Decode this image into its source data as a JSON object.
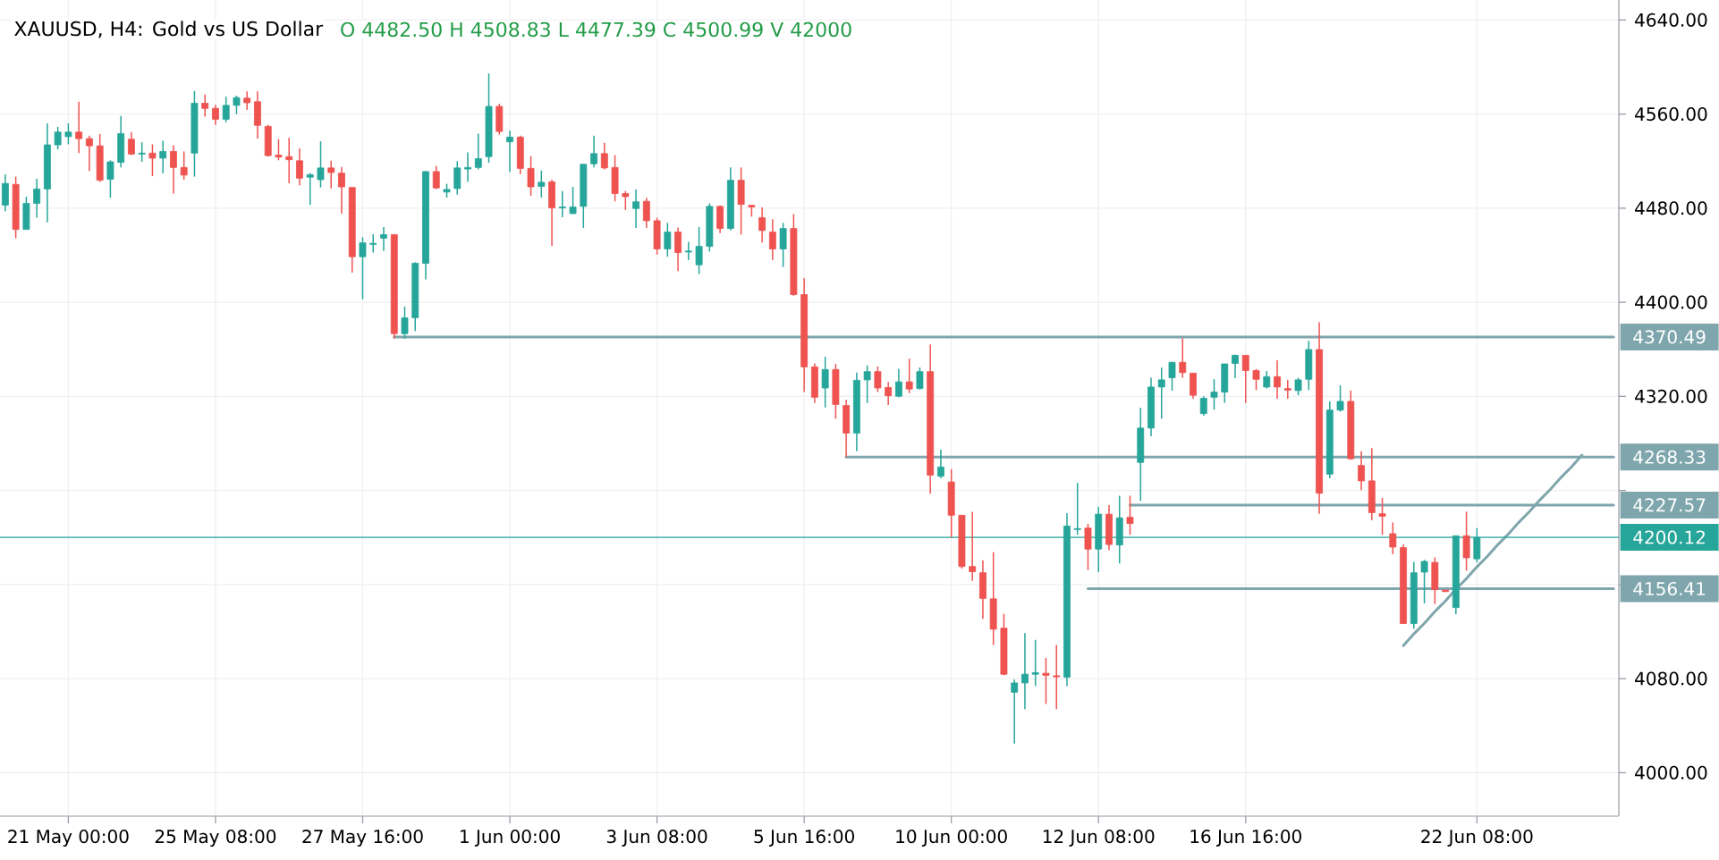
{
  "chart_data": {
    "type": "candlestick",
    "title": "XAUUSD, H4: Gold vs US Dollar",
    "subtitle": "O 4482.50 H 4508.83 L 4477.39 C 4500.99 V 42000",
    "categories": [
      null,
      null,
      null,
      null,
      null,
      null,
      "21 May 00:00",
      null,
      null,
      null,
      null,
      null,
      null,
      null,
      null,
      null,
      null,
      null,
      null,
      null,
      "25 May 08:00",
      null,
      null,
      null,
      null,
      null,
      null,
      null,
      null,
      null,
      null,
      null,
      null,
      null,
      "27 May 16:00",
      null,
      null,
      null,
      null,
      null,
      null,
      null,
      null,
      null,
      null,
      null,
      null,
      null,
      "1 Jun 00:00",
      null,
      null,
      null,
      null,
      null,
      null,
      null,
      null,
      null,
      null,
      null,
      null,
      null,
      "3 Jun 08:00",
      null,
      null,
      null,
      null,
      null,
      null,
      null,
      null,
      null,
      null,
      null,
      null,
      null,
      "5 Jun 16:00",
      null,
      null,
      null,
      null,
      null,
      null,
      null,
      null,
      null,
      null,
      null,
      null,
      null,
      "10 Jun 00:00",
      null,
      null,
      null,
      null,
      null,
      null,
      null,
      null,
      null,
      null,
      null,
      null,
      null,
      "12 Jun 08:00",
      null,
      null,
      null,
      null,
      null,
      null,
      null,
      null,
      null,
      null,
      null,
      null,
      null,
      "16 Jun 16:00",
      null,
      null,
      null,
      null,
      null,
      null,
      null,
      null,
      null,
      null,
      null,
      null,
      null,
      null,
      null,
      null,
      null,
      null,
      null,
      null,
      null,
      "22 Jun 08:00",
      null,
      null,
      null,
      null,
      null,
      null,
      null,
      null,
      null,
      null,
      null,
      null,
      null
    ],
    "ohlc": [
      [
        4482.5,
        4508.83,
        4477.39,
        4500.99
      ],
      [
        4500.2,
        4506.8,
        4454.4,
        4461.9
      ],
      [
        4461.9,
        4489.8,
        4461.9,
        4484.1
      ],
      [
        4484.1,
        4505.0,
        4471.9,
        4496.3
      ],
      [
        4496.3,
        4552.1,
        4468.0,
        4533.8
      ],
      [
        4533.8,
        4549.1,
        4529.9,
        4544.7
      ],
      [
        4540.8,
        4552.1,
        4534.3,
        4544.7
      ],
      [
        4544.7,
        4570.5,
        4526.8,
        4539.1
      ],
      [
        4539.1,
        4541.7,
        4511.6,
        4533.0
      ],
      [
        4533.0,
        4543.0,
        4502.4,
        4503.7
      ],
      [
        4504.6,
        4520.7,
        4488.9,
        4519.4
      ],
      [
        4519.0,
        4558.3,
        4514.6,
        4543.4
      ],
      [
        4538.6,
        4544.7,
        4525.1,
        4526.0
      ],
      [
        4526.0,
        4536.0,
        4519.4,
        4526.8
      ],
      [
        4526.8,
        4534.3,
        4507.2,
        4522.5
      ],
      [
        4522.5,
        4537.3,
        4509.8,
        4528.2
      ],
      [
        4528.2,
        4533.4,
        4492.4,
        4514.6
      ],
      [
        4514.6,
        4528.2,
        4504.2,
        4508.1
      ],
      [
        4526.8,
        4579.6,
        4506.8,
        4569.2
      ],
      [
        4569.2,
        4576.6,
        4557.8,
        4564.8
      ],
      [
        4564.8,
        4567.9,
        4550.8,
        4555.6
      ],
      [
        4555.6,
        4574.8,
        4553.0,
        4567.4
      ],
      [
        4567.4,
        4575.7,
        4560.0,
        4574.0
      ],
      [
        4573.5,
        4579.2,
        4563.5,
        4569.6
      ],
      [
        4570.5,
        4579.2,
        4539.1,
        4550.4
      ],
      [
        4549.5,
        4550.8,
        4523.8,
        4524.7
      ],
      [
        4525.1,
        4538.6,
        4520.7,
        4523.4
      ],
      [
        4523.8,
        4539.9,
        4501.1,
        4521.2
      ],
      [
        4520.3,
        4530.8,
        4499.4,
        4505.5
      ],
      [
        4506.3,
        4509.8,
        4482.8,
        4508.5
      ],
      [
        4504.2,
        4536.9,
        4497.6,
        4514.2
      ],
      [
        4514.2,
        4520.3,
        4496.7,
        4510.3
      ],
      [
        4509.8,
        4515.1,
        4475.4,
        4498.1
      ],
      [
        4497.6,
        4497.6,
        4425.2,
        4438.7
      ],
      [
        4438.7,
        4455.3,
        4402.5,
        4450.5
      ],
      [
        4449.2,
        4457.9,
        4442.2,
        4450.1
      ],
      [
        4454.4,
        4464.0,
        4443.5,
        4457.5
      ],
      [
        4457.5,
        4457.5,
        4369.0,
        4373.3
      ],
      [
        4373.3,
        4396.4,
        4369.0,
        4386.8
      ],
      [
        4386.8,
        4434.0,
        4375.5,
        4433.1
      ],
      [
        4433.1,
        4511.5,
        4419.5,
        4511.1
      ],
      [
        4511.1,
        4515.9,
        4496.3,
        4497.2
      ],
      [
        4493.7,
        4500.7,
        4488.9,
        4495.9
      ],
      [
        4496.7,
        4519.9,
        4491.5,
        4514.2
      ],
      [
        4513.3,
        4527.3,
        4502.4,
        4514.6
      ],
      [
        4514.6,
        4543.4,
        4512.9,
        4522.1
      ],
      [
        4523.8,
        4594.5,
        4518.6,
        4566.5
      ],
      [
        4566.5,
        4568.7,
        4542.6,
        4545.2
      ],
      [
        4536.4,
        4546.0,
        4510.7,
        4540.4
      ],
      [
        4540.4,
        4541.7,
        4509.0,
        4513.8
      ],
      [
        4513.8,
        4524.2,
        4490.6,
        4498.1
      ],
      [
        4498.5,
        4512.0,
        4488.9,
        4502.0
      ],
      [
        4502.4,
        4504.2,
        4447.9,
        4480.2
      ],
      [
        4480.2,
        4494.6,
        4472.3,
        4481.0
      ],
      [
        4475.4,
        4498.1,
        4474.9,
        4481.0
      ],
      [
        4481.5,
        4517.3,
        4463.2,
        4517.3
      ],
      [
        4517.7,
        4541.7,
        4514.6,
        4526.4
      ],
      [
        4526.4,
        4535.6,
        4512.9,
        4514.2
      ],
      [
        4514.6,
        4525.1,
        4485.8,
        4492.4
      ],
      [
        4492.4,
        4494.6,
        4478.4,
        4489.8
      ],
      [
        4479.7,
        4495.9,
        4463.2,
        4485.4
      ],
      [
        4485.8,
        4488.9,
        4463.2,
        4469.3
      ],
      [
        4469.3,
        4471.9,
        4440.5,
        4445.3
      ],
      [
        4445.3,
        4467.5,
        4438.7,
        4459.7
      ],
      [
        4459.7,
        4463.6,
        4426.5,
        4442.2
      ],
      [
        4442.7,
        4451.4,
        4435.7,
        4443.5
      ],
      [
        4431.8,
        4464.0,
        4423.9,
        4447.5
      ],
      [
        4447.5,
        4484.1,
        4443.1,
        4481.5
      ],
      [
        4481.5,
        4482.4,
        4458.8,
        4462.7
      ],
      [
        4462.7,
        4514.6,
        4461.0,
        4503.7
      ],
      [
        4503.7,
        4514.6,
        4457.5,
        4483.2
      ],
      [
        4482.4,
        4482.4,
        4472.8,
        4481.0
      ],
      [
        4471.9,
        4480.6,
        4450.9,
        4461.0
      ],
      [
        4459.7,
        4470.6,
        4435.7,
        4445.3
      ],
      [
        4445.3,
        4467.5,
        4430.0,
        4462.7
      ],
      [
        4462.7,
        4474.9,
        4405.6,
        4406.5
      ],
      [
        4406.5,
        4420.4,
        4323.6,
        4345.0
      ],
      [
        4345.0,
        4348.0,
        4314.4,
        4319.2
      ],
      [
        4327.1,
        4353.7,
        4310.5,
        4342.8
      ],
      [
        4342.8,
        4347.6,
        4300.9,
        4313.1
      ],
      [
        4312.2,
        4317.0,
        4268.3,
        4288.7
      ],
      [
        4288.7,
        4340.2,
        4273.4,
        4333.6
      ],
      [
        4334.0,
        4346.3,
        4314.4,
        4341.0
      ],
      [
        4341.0,
        4345.4,
        4323.6,
        4327.1
      ],
      [
        4327.5,
        4332.3,
        4312.7,
        4320.5
      ],
      [
        4320.1,
        4343.2,
        4319.2,
        4332.3
      ],
      [
        4332.3,
        4351.9,
        4322.7,
        4326.2
      ],
      [
        4326.6,
        4344.5,
        4325.8,
        4341.0
      ],
      [
        4341.0,
        4364.1,
        4237.2,
        4252.9
      ],
      [
        4252.0,
        4274.7,
        4250.3,
        4259.9
      ],
      [
        4247.2,
        4258.1,
        4200.1,
        4218.9
      ],
      [
        4218.9,
        4218.9,
        4173.5,
        4175.3
      ],
      [
        4175.3,
        4221.9,
        4163.1,
        4170.9
      ],
      [
        4170.0,
        4180.5,
        4130.8,
        4148.2
      ],
      [
        4147.8,
        4187.5,
        4108.5,
        4122.0
      ],
      [
        4122.9,
        4135.1,
        4082.8,
        4083.7
      ],
      [
        4068.4,
        4079.3,
        4024.8,
        4076.3
      ],
      [
        4076.3,
        4118.6,
        4054.0,
        4083.7
      ],
      [
        4083.7,
        4112.9,
        4073.6,
        4085.0
      ],
      [
        4084.5,
        4097.6,
        4058.4,
        4082.8
      ],
      [
        4082.4,
        4108.5,
        4054.0,
        4081.5
      ],
      [
        4081.1,
        4220.6,
        4073.6,
        4209.7
      ],
      [
        4206.7,
        4246.4,
        4202.3,
        4207.5
      ],
      [
        4208.0,
        4211.5,
        4172.2,
        4190.1
      ],
      [
        4190.1,
        4225.9,
        4170.5,
        4219.8
      ],
      [
        4219.8,
        4227.6,
        4189.2,
        4194.0
      ],
      [
        4193.6,
        4235.5,
        4177.9,
        4216.7
      ],
      [
        4217.1,
        4235.5,
        4202.3,
        4211.9
      ],
      [
        4263.8,
        4310.1,
        4231.1,
        4293.0
      ],
      [
        4293.0,
        4335.8,
        4286.1,
        4327.9
      ],
      [
        4327.9,
        4344.5,
        4300.9,
        4334.0
      ],
      [
        4335.8,
        4349.3,
        4324.9,
        4348.9
      ],
      [
        4348.9,
        4369.4,
        4335.8,
        4340.2
      ],
      [
        4339.7,
        4339.7,
        4317.9,
        4320.9
      ],
      [
        4305.3,
        4320.1,
        4303.5,
        4318.3
      ],
      [
        4319.2,
        4334.5,
        4308.7,
        4323.6
      ],
      [
        4323.6,
        4347.6,
        4314.4,
        4347.6
      ],
      [
        4348.0,
        4355.4,
        4335.4,
        4354.9
      ],
      [
        4354.9,
        4354.9,
        4314.4,
        4341.9
      ],
      [
        4341.9,
        4343.2,
        4325.3,
        4334.5
      ],
      [
        4327.9,
        4341.5,
        4326.6,
        4336.7
      ],
      [
        4336.7,
        4350.6,
        4317.9,
        4327.9
      ],
      [
        4326.6,
        4334.0,
        4317.9,
        4325.3
      ],
      [
        4324.9,
        4335.8,
        4320.9,
        4334.0
      ],
      [
        4334.5,
        4367.2,
        4325.3,
        4359.8
      ],
      [
        4359.8,
        4382.9,
        4220.2,
        4237.6
      ],
      [
        4253.8,
        4315.7,
        4250.3,
        4308.3
      ],
      [
        4308.3,
        4329.3,
        4307.0,
        4315.7
      ],
      [
        4315.7,
        4324.9,
        4266.0,
        4266.9
      ],
      [
        4261.2,
        4273.4,
        4240.3,
        4248.1
      ],
      [
        4248.1,
        4276.0,
        4214.5,
        4221.1
      ],
      [
        4220.2,
        4233.7,
        4202.3,
        4218.0
      ],
      [
        4203.2,
        4212.8,
        4185.7,
        4191.8
      ],
      [
        4191.4,
        4194.0,
        4126.8,
        4126.8
      ],
      [
        4126.8,
        4179.2,
        4122.5,
        4170.0
      ],
      [
        4170.5,
        4181.0,
        4143.9,
        4179.6
      ],
      [
        4178.8,
        4183.1,
        4143.4,
        4155.6
      ],
      [
        4155.2,
        4155.2,
        4153.9,
        4153.9
      ],
      [
        4140.4,
        4201.4,
        4134.7,
        4201.4
      ],
      [
        4201.4,
        4221.9,
        4171.8,
        4182.7
      ],
      [
        4181.8,
        4208.0,
        4178.8,
        4200.1
      ],
      null,
      null,
      null,
      null,
      null,
      null,
      null,
      null,
      null,
      null,
      null,
      null,
      null
    ],
    "colors": [
      "#26a69a",
      "#ef5350",
      "#26a69a",
      "#26a69a",
      "#26a69a",
      "#26a69a",
      "#26a69a",
      "#ef5350",
      "#ef5350",
      "#ef5350",
      "#26a69a",
      "#26a69a",
      "#ef5350",
      "#26a69a",
      "#ef5350",
      "#26a69a",
      "#ef5350",
      "#ef5350",
      "#26a69a",
      "#ef5350",
      "#ef5350",
      "#26a69a",
      "#26a69a",
      "#ef5350",
      "#ef5350",
      "#ef5350",
      "#ef5350",
      "#ef5350",
      "#ef5350",
      "#26a69a",
      "#26a69a",
      "#ef5350",
      "#ef5350",
      "#ef5350",
      "#26a69a",
      "#26a69a",
      "#26a69a",
      "#ef5350",
      "#26a69a",
      "#26a69a",
      "#26a69a",
      "#ef5350",
      "#26a69a",
      "#26a69a",
      "#26a69a",
      "#26a69a",
      "#26a69a",
      "#ef5350",
      "#26a69a",
      "#ef5350",
      "#ef5350",
      "#26a69a",
      "#ef5350",
      "#26a69a",
      "#26a69a",
      "#26a69a",
      "#26a69a",
      "#ef5350",
      "#ef5350",
      "#ef5350",
      "#26a69a",
      "#ef5350",
      "#ef5350",
      "#26a69a",
      "#ef5350",
      "#26a69a",
      "#26a69a",
      "#26a69a",
      "#ef5350",
      "#26a69a",
      "#ef5350",
      "#ef5350",
      "#ef5350",
      "#ef5350",
      "#26a69a",
      "#ef5350",
      "#ef5350",
      "#ef5350",
      "#26a69a",
      "#ef5350",
      "#ef5350",
      "#26a69a",
      "#26a69a",
      "#ef5350",
      "#ef5350",
      "#26a69a",
      "#ef5350",
      "#26a69a",
      "#ef5350",
      "#26a69a",
      "#ef5350",
      "#ef5350",
      "#ef5350",
      "#ef5350",
      "#ef5350",
      "#ef5350",
      "#26a69a",
      "#26a69a",
      "#26a69a",
      "#ef5350",
      "#ef5350",
      "#26a69a",
      "#26a69a",
      "#ef5350",
      "#26a69a",
      "#ef5350",
      "#26a69a",
      "#ef5350",
      "#26a69a",
      "#26a69a",
      "#26a69a",
      "#26a69a",
      "#ef5350",
      "#ef5350",
      "#26a69a",
      "#26a69a",
      "#26a69a",
      "#26a69a",
      "#ef5350",
      "#ef5350",
      "#26a69a",
      "#ef5350",
      "#ef5350",
      "#26a69a",
      "#26a69a",
      "#ef5350",
      "#26a69a",
      "#26a69a",
      "#ef5350",
      "#ef5350",
      "#ef5350",
      "#ef5350",
      "#ef5350",
      "#ef5350",
      "#26a69a",
      "#26a69a",
      "#ef5350",
      "#ef5350",
      "#26a69a",
      "#ef5350",
      "#26a69a",
      null,
      null,
      null,
      null,
      null,
      null,
      null,
      null,
      null,
      null,
      null,
      null,
      null
    ],
    "series": [
      {
        "type": "line",
        "name": "4370.49",
        "color": "#7fa6ac",
        "values": [
          null,
          null,
          null,
          null,
          null,
          null,
          null,
          null,
          null,
          null,
          null,
          null,
          null,
          null,
          null,
          null,
          null,
          null,
          null,
          null,
          null,
          null,
          null,
          null,
          null,
          null,
          null,
          null,
          null,
          null,
          null,
          null,
          null,
          null,
          null,
          null,
          null,
          4370.49,
          4370.49,
          4370.49,
          4370.49,
          4370.49,
          4370.49,
          4370.49,
          4370.49,
          4370.49,
          4370.49,
          4370.49,
          4370.49,
          4370.49,
          4370.49,
          4370.49,
          4370.49,
          4370.49,
          4370.49,
          4370.49,
          4370.49,
          4370.49,
          4370.49,
          4370.49,
          4370.49,
          4370.49,
          4370.49,
          4370.49,
          4370.49,
          4370.49,
          4370.49,
          4370.49,
          4370.49,
          4370.49,
          4370.49,
          4370.49,
          4370.49,
          4370.49,
          4370.49,
          4370.49,
          4370.49,
          4370.49,
          4370.49,
          4370.49,
          4370.49,
          4370.49,
          4370.49,
          4370.49,
          4370.49,
          4370.49,
          4370.49,
          4370.49,
          4370.49,
          4370.49,
          4370.49,
          4370.49,
          4370.49,
          4370.49,
          4370.49,
          4370.49,
          4370.49,
          4370.49,
          4370.49,
          4370.49,
          4370.49,
          4370.49,
          4370.49,
          4370.49,
          4370.49,
          4370.49,
          4370.49,
          4370.49,
          4370.49,
          4370.49,
          4370.49,
          4370.49,
          4370.49,
          4370.49,
          4370.49,
          4370.49,
          4370.49,
          4370.49,
          4370.49,
          4370.49,
          4370.49,
          4370.49,
          4370.49,
          4370.49,
          4370.49,
          4370.49,
          4370.49,
          4370.49,
          4370.49,
          4370.49,
          4370.49,
          4370.49,
          4370.49,
          4370.49,
          4370.49,
          4370.49,
          4370.49,
          4370.49,
          4370.49,
          4370.49,
          4370.49,
          4370.49,
          4370.49,
          4370.49,
          4370.49,
          4370.49,
          4370.49,
          4370.49,
          4370.49,
          4370.49,
          4370.49,
          4370.49,
          4370.49,
          4370.49
        ]
      },
      {
        "type": "line",
        "name": "4268.33",
        "color": "#7fa6ac",
        "values": [
          null,
          null,
          null,
          null,
          null,
          null,
          null,
          null,
          null,
          null,
          null,
          null,
          null,
          null,
          null,
          null,
          null,
          null,
          null,
          null,
          null,
          null,
          null,
          null,
          null,
          null,
          null,
          null,
          null,
          null,
          null,
          null,
          null,
          null,
          null,
          null,
          null,
          null,
          null,
          null,
          null,
          null,
          null,
          null,
          null,
          null,
          null,
          null,
          null,
          null,
          null,
          null,
          null,
          null,
          null,
          null,
          null,
          null,
          null,
          null,
          null,
          null,
          null,
          null,
          null,
          null,
          null,
          null,
          null,
          null,
          null,
          null,
          null,
          null,
          null,
          null,
          null,
          null,
          null,
          null,
          4268.33,
          4268.33,
          4268.33,
          4268.33,
          4268.33,
          4268.33,
          4268.33,
          4268.33,
          4268.33,
          4268.33,
          4268.33,
          4268.33,
          4268.33,
          4268.33,
          4268.33,
          4268.33,
          4268.33,
          4268.33,
          4268.33,
          4268.33,
          4268.33,
          4268.33,
          4268.33,
          4268.33,
          4268.33,
          4268.33,
          4268.33,
          4268.33,
          4268.33,
          4268.33,
          4268.33,
          4268.33,
          4268.33,
          4268.33,
          4268.33,
          4268.33,
          4268.33,
          4268.33,
          4268.33,
          4268.33,
          4268.33,
          4268.33,
          4268.33,
          4268.33,
          4268.33,
          4268.33,
          4268.33,
          4268.33,
          4268.33,
          4268.33,
          4268.33,
          4268.33,
          4268.33,
          4268.33,
          4268.33,
          4268.33,
          4268.33,
          4268.33,
          4268.33,
          4268.33,
          4268.33,
          4268.33,
          4268.33,
          4268.33,
          4268.33,
          4268.33,
          4268.33,
          4268.33,
          4268.33,
          4268.33,
          4268.33,
          4268.33,
          4268.33,
          4268.33
        ]
      },
      {
        "type": "line",
        "name": "4227.57",
        "color": "#7fa6ac",
        "values": [
          null,
          null,
          null,
          null,
          null,
          null,
          null,
          null,
          null,
          null,
          null,
          null,
          null,
          null,
          null,
          null,
          null,
          null,
          null,
          null,
          null,
          null,
          null,
          null,
          null,
          null,
          null,
          null,
          null,
          null,
          null,
          null,
          null,
          null,
          null,
          null,
          null,
          null,
          null,
          null,
          null,
          null,
          null,
          null,
          null,
          null,
          null,
          null,
          null,
          null,
          null,
          null,
          null,
          null,
          null,
          null,
          null,
          null,
          null,
          null,
          null,
          null,
          null,
          null,
          null,
          null,
          null,
          null,
          null,
          null,
          null,
          null,
          null,
          null,
          null,
          null,
          null,
          null,
          null,
          null,
          null,
          null,
          null,
          null,
          null,
          null,
          null,
          null,
          null,
          null,
          null,
          null,
          null,
          null,
          null,
          null,
          null,
          null,
          null,
          null,
          null,
          null,
          null,
          null,
          null,
          null,
          null,
          4227.57,
          4227.57,
          4227.57,
          4227.57,
          4227.57,
          4227.57,
          4227.57,
          4227.57,
          4227.57,
          4227.57,
          4227.57,
          4227.57,
          4227.57,
          4227.57,
          4227.57,
          4227.57,
          4227.57,
          4227.57,
          4227.57,
          4227.57,
          4227.57,
          4227.57,
          4227.57,
          4227.57,
          4227.57,
          4227.57,
          4227.57,
          4227.57,
          4227.57,
          4227.57,
          4227.57,
          4227.57,
          4227.57,
          4227.57,
          4227.57,
          4227.57,
          4227.57,
          4227.57,
          4227.57,
          4227.57,
          4227.57,
          4227.57,
          4227.57,
          4227.57,
          4227.57,
          4227.57,
          4227.57
        ]
      },
      {
        "type": "line",
        "name": "4156.41",
        "color": "#7fa6ac",
        "values": [
          null,
          null,
          null,
          null,
          null,
          null,
          null,
          null,
          null,
          null,
          null,
          null,
          null,
          null,
          null,
          null,
          null,
          null,
          null,
          null,
          null,
          null,
          null,
          null,
          null,
          null,
          null,
          null,
          null,
          null,
          null,
          null,
          null,
          null,
          null,
          null,
          null,
          null,
          null,
          null,
          null,
          null,
          null,
          null,
          null,
          null,
          null,
          null,
          null,
          null,
          null,
          null,
          null,
          null,
          null,
          null,
          null,
          null,
          null,
          null,
          null,
          null,
          null,
          null,
          null,
          null,
          null,
          null,
          null,
          null,
          null,
          null,
          null,
          null,
          null,
          null,
          null,
          null,
          null,
          null,
          null,
          null,
          null,
          null,
          null,
          null,
          null,
          null,
          null,
          null,
          null,
          null,
          null,
          null,
          null,
          null,
          null,
          null,
          null,
          null,
          null,
          null,
          null,
          4156.41,
          4156.41,
          4156.41,
          4156.41,
          4156.41,
          4156.41,
          4156.41,
          4156.41,
          4156.41,
          4156.41,
          4156.41,
          4156.41,
          4156.41,
          4156.41,
          4156.41,
          4156.41,
          4156.41,
          4156.41,
          4156.41,
          4156.41,
          4156.41,
          4156.41,
          4156.41,
          4156.41,
          4156.41,
          4156.41,
          4156.41,
          4156.41,
          4156.41,
          4156.41,
          4156.41,
          4156.41,
          4156.41,
          4156.41,
          4156.41,
          4156.41,
          4156.41,
          4156.41,
          4156.41,
          4156.41,
          4156.41,
          4156.41,
          4156.41,
          4156.41,
          4156.41,
          4156.41,
          4156.41,
          4156.41,
          4156.41,
          4156.41,
          4156.41
        ]
      },
      {
        "type": "line",
        "color": "#7fa6ac",
        "values": [
          null,
          null,
          null,
          null,
          null,
          null,
          null,
          null,
          null,
          null,
          null,
          null,
          null,
          null,
          null,
          null,
          null,
          null,
          null,
          null,
          null,
          null,
          null,
          null,
          null,
          null,
          null,
          null,
          null,
          null,
          null,
          null,
          null,
          null,
          null,
          null,
          null,
          null,
          null,
          null,
          null,
          null,
          null,
          null,
          null,
          null,
          null,
          null,
          null,
          null,
          null,
          null,
          null,
          null,
          null,
          null,
          null,
          null,
          null,
          null,
          null,
          null,
          null,
          null,
          null,
          null,
          null,
          null,
          null,
          null,
          null,
          null,
          null,
          null,
          null,
          null,
          null,
          null,
          null,
          null,
          null,
          null,
          null,
          null,
          null,
          null,
          null,
          null,
          null,
          null,
          null,
          null,
          null,
          null,
          null,
          null,
          null,
          null,
          null,
          null,
          null,
          null,
          null,
          null,
          null,
          null,
          null,
          null,
          null,
          null,
          null,
          null,
          null,
          null,
          null,
          null,
          null,
          null,
          null,
          null,
          null,
          null,
          null,
          null,
          null,
          null,
          null,
          null,
          null,
          null,
          null,
          null,
          null,
          4108,
          4118,
          4127,
          4137,
          4146,
          4156,
          4165,
          4175,
          4184,
          4194,
          4203,
          4213,
          4222,
          4232,
          4241,
          4251,
          4260,
          4270,
          null,
          null,
          null
        ]
      }
    ],
    "ref_lines": [
      {
        "axis": "y",
        "value": 4200.12,
        "label": "4200.12",
        "color": "#26a69a"
      }
    ],
    "ylim": [
      3963,
      4657
    ],
    "yticks": [
      {
        "value": 4000,
        "label": "4000.00"
      },
      {
        "value": 4080,
        "label": "4080.00"
      },
      {
        "value": 4160,
        "label": null
      },
      {
        "value": 4240,
        "label": null
      },
      {
        "value": 4320,
        "label": "4320.00"
      },
      {
        "value": 4400,
        "label": "4400.00"
      },
      {
        "value": 4480,
        "label": "4480.00"
      },
      {
        "value": 4560,
        "label": "4560.00"
      },
      {
        "value": 4640,
        "label": "4640.00"
      }
    ],
    "grid": true
  }
}
